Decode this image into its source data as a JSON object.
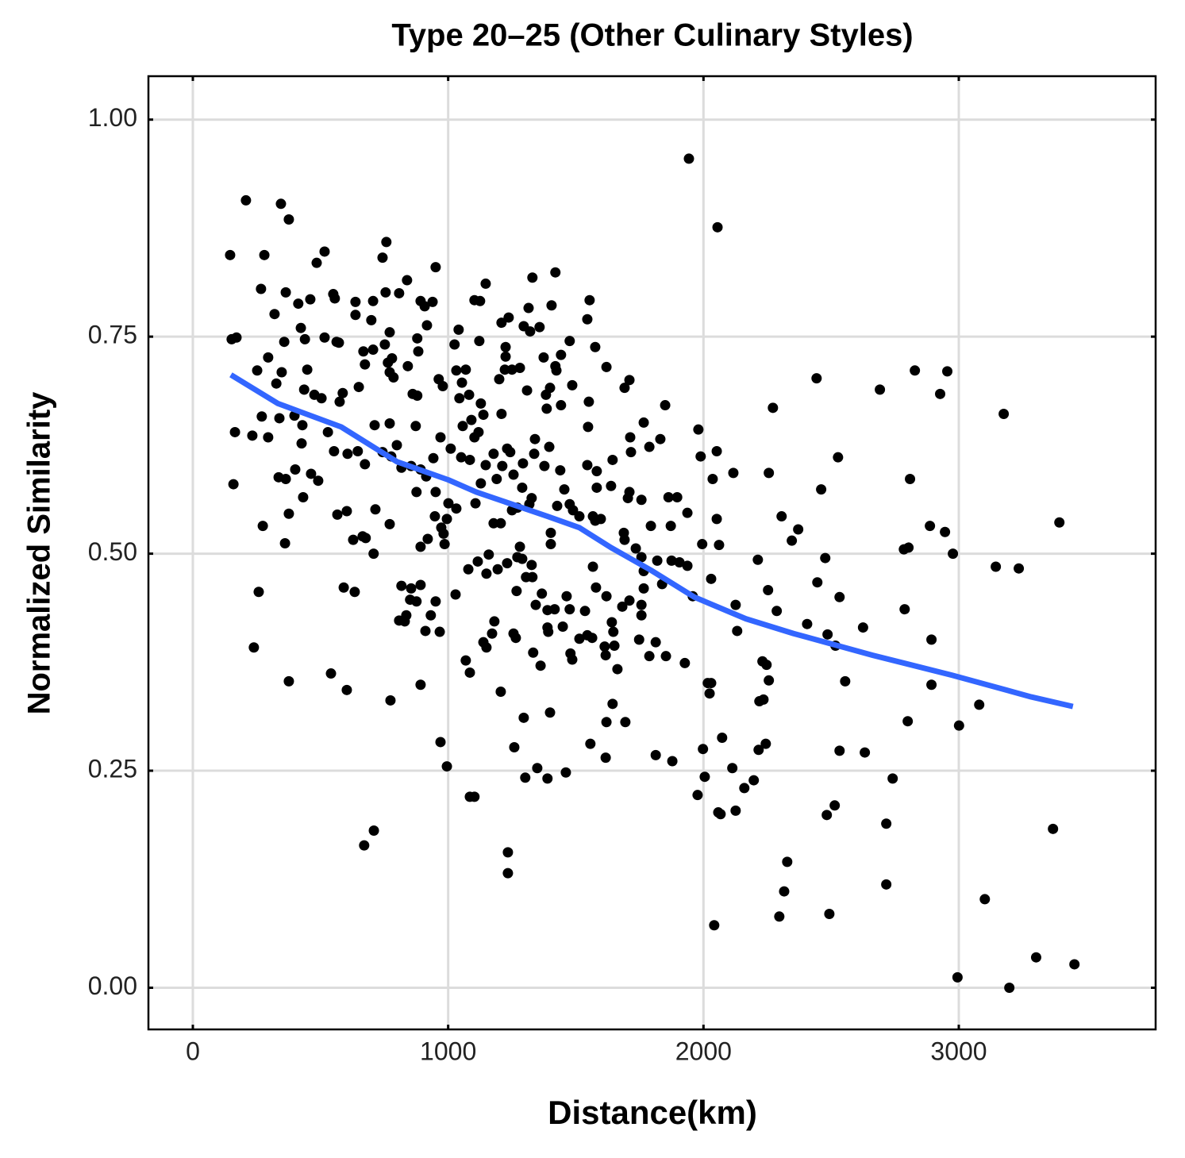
{
  "chart_data": {
    "type": "scatter",
    "title": "Type 20–25 (Other Culinary Styles)",
    "x_label": "Distance(km)",
    "y_label": "Normalized Similarity",
    "color": "#000000",
    "grid": true,
    "xlim": [
      -174,
      3771
    ],
    "ylim": [
      -0.048,
      1.05
    ],
    "xticks": [
      0,
      1000,
      2000,
      3000
    ],
    "yticks": [
      {
        "value": 0,
        "label": "0.00"
      },
      {
        "value": 0.25,
        "label": "0.25"
      },
      {
        "value": 0.5,
        "label": "0.50"
      },
      {
        "value": 0.75,
        "label": "0.75"
      },
      {
        "value": 1,
        "label": "1.00"
      }
    ],
    "x": [
      146,
      208,
      345,
      376,
      280,
      152,
      171,
      165,
      159,
      267,
      364,
      320,
      252,
      295,
      348,
      270,
      233,
      295,
      339,
      327,
      358,
      336,
      364,
      376,
      361,
      274,
      258,
      239,
      376,
      516,
      485,
      413,
      460,
      423,
      439,
      448,
      436,
      476,
      504,
      398,
      429,
      426,
      401,
      432,
      463,
      491,
      529,
      550,
      556,
      516,
      563,
      572,
      637,
      637,
      706,
      699,
      758,
      743,
      755,
      808,
      839,
      771,
      752,
      706,
      668,
      674,
      650,
      587,
      575,
      553,
      606,
      646,
      674,
      712,
      771,
      771,
      764,
      780,
      786,
      879,
      883,
      842,
      861,
      879,
      799,
      777,
      743,
      855,
      817,
      876,
      892,
      951,
      908,
      917,
      939,
      892,
      963,
      979,
      970,
      873,
      914,
      942,
      951,
      1001,
      948,
      995,
      973,
      986,
      982,
      920,
      892,
      715,
      771,
      665,
      677,
      628,
      708,
      603,
      566,
      591,
      634,
      541,
      603,
      774,
      817,
      855,
      851,
      876,
      892,
      808,
      836,
      830,
      932,
      951,
      911,
      967,
      892,
      970,
      995,
      671,
      709,
      1041,
      1025,
      1032,
      1069,
      1054,
      1044,
      1082,
      1091,
      1057,
      1010,
      1051,
      1085,
      1032,
      1079,
      1029,
      1069,
      1085,
      1085,
      1103,
      1103,
      1147,
      1125,
      1122,
      1128,
      1138,
      1119,
      1103,
      1147,
      1178,
      1212,
      1190,
      1128,
      1107,
      1178,
      1159,
      1116,
      1150,
      1194,
      1231,
      1206,
      1250,
      1256,
      1293,
      1243,
      1231,
      1209,
      1200,
      1222,
      1250,
      1281,
      1225,
      1225,
      1209,
      1237,
      1330,
      1420,
      1405,
      1315,
      1296,
      1321,
      1358,
      1309,
      1374,
      1383,
      1386,
      1399,
      1420,
      1442,
      1424,
      1476,
      1486,
      1442,
      1340,
      1337,
      1396,
      1290,
      1327,
      1318,
      1271,
      1377,
      1439,
      1455,
      1427,
      1476,
      1402,
      1402,
      1281,
      1271,
      1290,
      1327,
      1330,
      1305,
      1268,
      1367,
      1343,
      1389,
      1417,
      1389,
      1392,
      1449,
      1464,
      1476,
      1536,
      1333,
      1362,
      1256,
      1265,
      1181,
      1172,
      1138,
      1150,
      1206,
      1296,
      1259,
      1302,
      1349,
      1389,
      1399,
      1461,
      1234,
      1234,
      1479,
      1486,
      1514,
      1489,
      1545,
      1548,
      1551,
      1545,
      1554,
      1576,
      1582,
      1582,
      1567,
      1598,
      1576,
      1567,
      1579,
      1620,
      1545,
      1564,
      1514,
      1613,
      1617,
      1651,
      1641,
      1647,
      1663,
      1644,
      1620,
      1694,
      1557,
      1617,
      1620,
      1691,
      1710,
      1713,
      1644,
      1716,
      1766,
      1788,
      1831,
      1850,
      1710,
      1704,
      1757,
      1638,
      1688,
      1691,
      1735,
      1757,
      1766,
      1766,
      1757,
      1757,
      1710,
      1682,
      1748,
      1788,
      1813,
      1853,
      1794,
      1819,
      1838,
      1875,
      1872,
      1863,
      1897,
      1937,
      1906,
      1937,
      1958,
      1927,
      1813,
      1878,
      1943,
      2055,
      1980,
      1989,
      2036,
      2052,
      2052,
      1995,
      2061,
      2030,
      2017,
      2024,
      2030,
      1998,
      2005,
      1977,
      2058,
      2067,
      2073,
      2042,
      2117,
      2126,
      2132,
      2113,
      2126,
      2160,
      2197,
      2213,
      2256,
      2272,
      2253,
      2287,
      2231,
      2247,
      2256,
      2219,
      2235,
      2244,
      2216,
      2306,
      2346,
      2371,
      2328,
      2316,
      2297,
      2406,
      2443,
      2461,
      2446,
      2477,
      2486,
      2517,
      2533,
      2527,
      2555,
      2533,
      2514,
      2483,
      2493,
      2625,
      2632,
      2691,
      2741,
      2716,
      2716,
      2785,
      2803,
      2788,
      2809,
      2800,
      2828,
      2887,
      2893,
      2893,
      2927,
      2946,
      2955,
      2977,
      2995,
      3001,
      3080,
      3102,
      3145,
      3176,
      3198,
      3235,
      3303,
      3369,
      3394,
      3453
    ],
    "values": [
      0.844,
      0.907,
      0.903,
      0.885,
      0.844,
      0.747,
      0.749,
      0.64,
      0.58,
      0.805,
      0.801,
      0.776,
      0.711,
      0.726,
      0.709,
      0.658,
      0.636,
      0.634,
      0.656,
      0.696,
      0.744,
      0.588,
      0.586,
      0.546,
      0.512,
      0.532,
      0.456,
      0.392,
      0.353,
      0.848,
      0.835,
      0.788,
      0.793,
      0.76,
      0.747,
      0.712,
      0.689,
      0.683,
      0.679,
      0.659,
      0.648,
      0.627,
      0.597,
      0.565,
      0.592,
      0.584,
      0.64,
      0.799,
      0.794,
      0.749,
      0.744,
      0.743,
      0.79,
      0.775,
      0.791,
      0.769,
      0.859,
      0.841,
      0.801,
      0.8,
      0.815,
      0.755,
      0.741,
      0.735,
      0.733,
      0.718,
      0.692,
      0.685,
      0.675,
      0.618,
      0.615,
      0.618,
      0.603,
      0.648,
      0.65,
      0.709,
      0.72,
      0.725,
      0.703,
      0.748,
      0.733,
      0.716,
      0.684,
      0.682,
      0.625,
      0.612,
      0.617,
      0.601,
      0.599,
      0.571,
      0.597,
      0.83,
      0.785,
      0.763,
      0.79,
      0.791,
      0.701,
      0.693,
      0.634,
      0.647,
      0.589,
      0.61,
      0.571,
      0.558,
      0.543,
      0.54,
      0.53,
      0.511,
      0.523,
      0.517,
      0.508,
      0.551,
      0.534,
      0.52,
      0.518,
      0.516,
      0.5,
      0.549,
      0.545,
      0.461,
      0.456,
      0.362,
      0.343,
      0.331,
      0.463,
      0.46,
      0.447,
      0.445,
      0.464,
      0.423,
      0.429,
      0.422,
      0.429,
      0.445,
      0.411,
      0.41,
      0.349,
      0.283,
      0.255,
      0.164,
      0.181,
      0.758,
      0.741,
      0.711,
      0.712,
      0.697,
      0.679,
      0.683,
      0.654,
      0.647,
      0.621,
      0.611,
      0.608,
      0.552,
      0.482,
      0.453,
      0.377,
      0.363,
      0.22,
      0.22,
      0.792,
      0.811,
      0.791,
      0.745,
      0.673,
      0.66,
      0.64,
      0.634,
      0.602,
      0.615,
      0.601,
      0.586,
      0.581,
      0.558,
      0.535,
      0.499,
      0.491,
      0.477,
      0.482,
      0.489,
      0.535,
      0.55,
      0.591,
      0.604,
      0.617,
      0.621,
      0.661,
      0.701,
      0.712,
      0.712,
      0.714,
      0.727,
      0.738,
      0.766,
      0.772,
      0.818,
      0.824,
      0.786,
      0.783,
      0.762,
      0.756,
      0.761,
      0.688,
      0.726,
      0.683,
      0.667,
      0.691,
      0.716,
      0.729,
      0.711,
      0.745,
      0.694,
      0.671,
      0.632,
      0.615,
      0.623,
      0.576,
      0.564,
      0.557,
      0.553,
      0.601,
      0.596,
      0.574,
      0.555,
      0.557,
      0.524,
      0.511,
      0.508,
      0.496,
      0.494,
      0.487,
      0.473,
      0.473,
      0.457,
      0.454,
      0.441,
      0.435,
      0.436,
      0.415,
      0.41,
      0.416,
      0.451,
      0.436,
      0.434,
      0.386,
      0.371,
      0.408,
      0.403,
      0.422,
      0.408,
      0.398,
      0.392,
      0.341,
      0.311,
      0.277,
      0.242,
      0.253,
      0.241,
      0.317,
      0.248,
      0.156,
      0.132,
      0.385,
      0.378,
      0.543,
      0.55,
      0.602,
      0.646,
      0.675,
      0.77,
      0.792,
      0.738,
      0.595,
      0.576,
      0.543,
      0.54,
      0.538,
      0.485,
      0.461,
      0.451,
      0.406,
      0.403,
      0.402,
      0.393,
      0.383,
      0.394,
      0.421,
      0.41,
      0.367,
      0.327,
      0.306,
      0.306,
      0.281,
      0.265,
      0.715,
      0.691,
      0.7,
      0.634,
      0.608,
      0.617,
      0.651,
      0.623,
      0.632,
      0.671,
      0.571,
      0.564,
      0.562,
      0.578,
      0.524,
      0.516,
      0.506,
      0.496,
      0.48,
      0.46,
      0.441,
      0.429,
      0.446,
      0.439,
      0.401,
      0.382,
      0.398,
      0.382,
      0.532,
      0.492,
      0.465,
      0.492,
      0.532,
      0.565,
      0.565,
      0.547,
      0.49,
      0.486,
      0.451,
      0.374,
      0.268,
      0.261,
      0.955,
      0.876,
      0.643,
      0.612,
      0.586,
      0.618,
      0.54,
      0.511,
      0.51,
      0.471,
      0.351,
      0.339,
      0.351,
      0.275,
      0.243,
      0.222,
      0.202,
      0.2,
      0.288,
      0.072,
      0.593,
      0.441,
      0.411,
      0.253,
      0.204,
      0.23,
      0.239,
      0.493,
      0.593,
      0.668,
      0.458,
      0.434,
      0.376,
      0.372,
      0.354,
      0.33,
      0.332,
      0.281,
      0.274,
      0.543,
      0.515,
      0.528,
      0.145,
      0.111,
      0.082,
      0.419,
      0.702,
      0.574,
      0.467,
      0.495,
      0.407,
      0.394,
      0.45,
      0.611,
      0.353,
      0.273,
      0.21,
      0.199,
      0.085,
      0.415,
      0.271,
      0.689,
      0.241,
      0.189,
      0.119,
      0.505,
      0.507,
      0.436,
      0.586,
      0.307,
      0.711,
      0.532,
      0.401,
      0.349,
      0.684,
      0.525,
      0.71,
      0.5,
      0.012,
      0.302,
      0.326,
      0.102,
      0.485,
      0.661,
      0,
      0.483,
      0.035,
      0.183,
      0.536,
      0.027
    ],
    "fit": {
      "color": "#3366ff",
      "x": [
        149,
        333,
        581,
        799,
        1001,
        1110,
        1389,
        1514,
        1638,
        1794,
        1964,
        2166,
        2353,
        2663,
        2974,
        3284,
        3447
      ],
      "values": [
        0.706,
        0.673,
        0.646,
        0.606,
        0.585,
        0.571,
        0.543,
        0.53,
        0.507,
        0.481,
        0.45,
        0.425,
        0.408,
        0.383,
        0.36,
        0.335,
        0.324
      ]
    }
  }
}
